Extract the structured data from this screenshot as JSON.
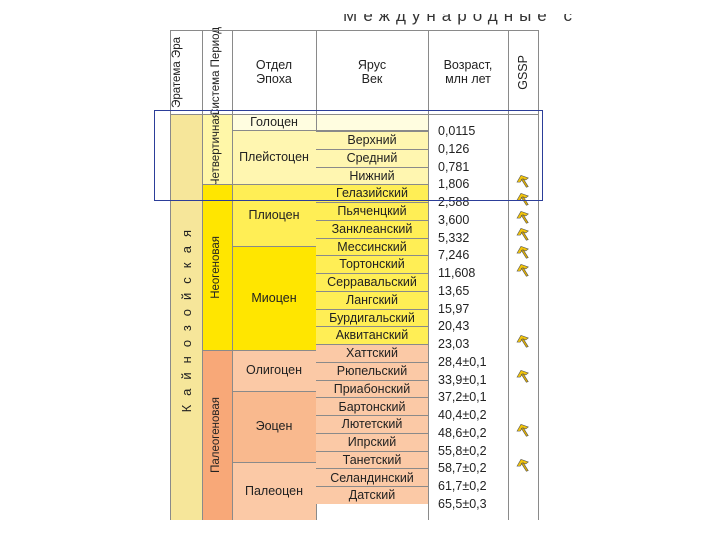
{
  "page_title": "Международные с",
  "headers": {
    "eratema": "Эратема Эра",
    "sistema": "Система Период",
    "otdel": "Отдел Эпоха",
    "yarus": "Ярус Век",
    "vozrast": "Возраст, млн лет",
    "gssp": "GSSP"
  },
  "era": "Кайнозойская",
  "systems": [
    "Четвертичная",
    "Неогеновая",
    "Палеогеновая"
  ],
  "epochs": [
    "Голоцен",
    "Плейстоцен",
    "Плиоцен",
    "Миоцен",
    "Олигоцен",
    "Эоцен",
    "Палеоцен"
  ],
  "stages": [
    "Верхний",
    "Средний",
    "Нижний",
    "Гелазийский",
    "Пьяченцкий",
    "Занклеанский",
    "Мессинский",
    "Тортонский",
    "Серравальский",
    "Лангский",
    "Бурдигальский",
    "Аквитанский",
    "Хаттский",
    "Рюпельский",
    "Приабонский",
    "Бартонский",
    "Лютетский",
    "Ипрский",
    "Танетский",
    "Селандинский",
    "Датский"
  ],
  "ages": [
    "0,0115",
    "0,126",
    "0,781",
    "1,806",
    "2,588",
    "3,600",
    "5,332",
    "7,246",
    "11,608",
    "13,65",
    "15,97",
    "20,43",
    "23,03",
    "28,4±0,1",
    "33,9±0,1",
    "37,2±0,1",
    "40,4±0,2",
    "48,6±0,2",
    "55,8±0,2",
    "58,7±0,2",
    "61,7±0,2",
    "65,5±0,3"
  ],
  "gssp_marker": "golden-spike-icon",
  "colors": {
    "quaternary": "#fff7a8",
    "neogene": "#ffe600",
    "paleogene": "#f8a878",
    "holocene_stage": "#fffde0",
    "pleistocene_stage": "#fff6b0",
    "neogene_stage": "#ffee55",
    "paleogene_stage": "#fbc9a6",
    "highlight": "#2c3e99"
  }
}
